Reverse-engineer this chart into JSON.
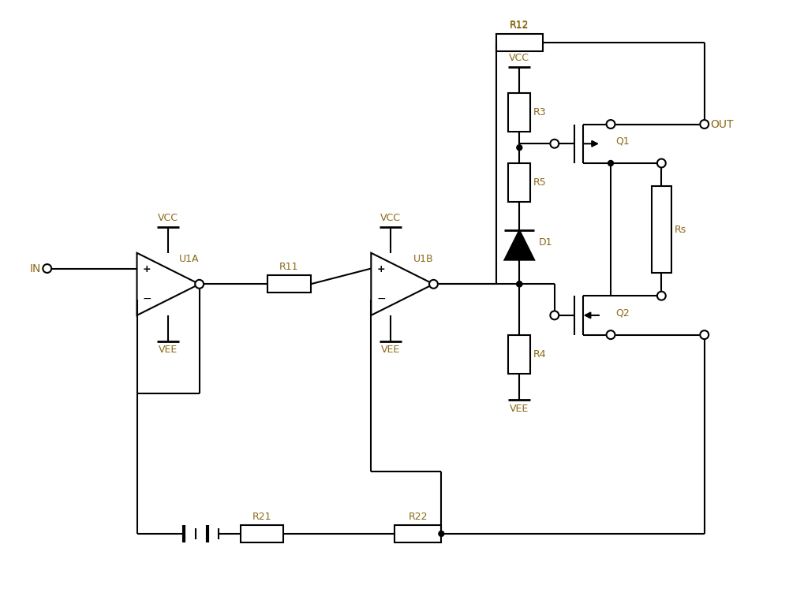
{
  "bg_color": "#ffffff",
  "line_color": "#000000",
  "label_color": "#8B6914",
  "figsize": [
    10.0,
    7.8
  ],
  "dpi": 100,
  "lw": 1.5,
  "label_fs": 9,
  "title_fs": 10,
  "xlim": [
    0,
    100
  ],
  "ylim": [
    0,
    78
  ]
}
